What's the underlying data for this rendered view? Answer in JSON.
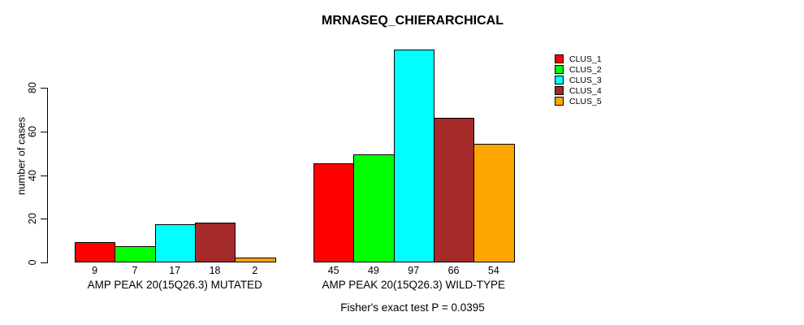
{
  "chart_data": {
    "type": "bar",
    "title": "MRNASEQ_CHIERARCHICAL",
    "ylabel": "number of cases",
    "xlabel": "",
    "yticks": [
      0,
      20,
      40,
      60,
      80
    ],
    "ylim": [
      0,
      100
    ],
    "grid": false,
    "legend_position": "top-right",
    "bar_value_labels_shown": true,
    "categories": [
      "AMP PEAK 20(15Q26.3) MUTATED",
      "AMP PEAK 20(15Q26.3) WILD-TYPE"
    ],
    "series": [
      {
        "name": "CLUS_1",
        "color": "#FF0000",
        "values": [
          9,
          45
        ]
      },
      {
        "name": "CLUS_2",
        "color": "#00FF00",
        "values": [
          7,
          49
        ]
      },
      {
        "name": "CLUS_3",
        "color": "#00FFFF",
        "values": [
          17,
          97
        ]
      },
      {
        "name": "CLUS_4",
        "color": "#A52A2A",
        "values": [
          18,
          66
        ]
      },
      {
        "name": "CLUS_5",
        "color": "#FFA500",
        "values": [
          2,
          54
        ]
      }
    ],
    "annotation": "Fisher's exact test P = 0.0395"
  },
  "colors": {
    "background": "#FFFFFF",
    "axis": "#000000",
    "text": "#000000"
  }
}
